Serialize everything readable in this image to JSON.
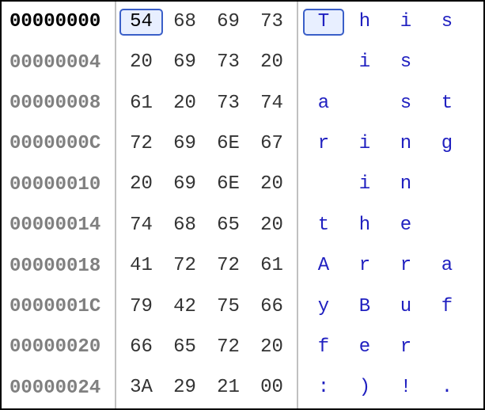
{
  "viewer": {
    "colors": {
      "border": "#000000",
      "divider": "#c0c0c0",
      "offset_first": "#000000",
      "offset_other": "#808080",
      "hex_text": "#333333",
      "ascii_text": "#2020c0",
      "selection_bg": "#e8efff",
      "selection_border": "#3a5fc8",
      "background": "#ffffff"
    },
    "columns_per_row": 4,
    "selected": {
      "row": 0,
      "col": 0
    },
    "rows": [
      {
        "offset": "00000000",
        "hex": [
          "54",
          "68",
          "69",
          "73"
        ],
        "ascii": [
          "T",
          "h",
          "i",
          "s"
        ]
      },
      {
        "offset": "00000004",
        "hex": [
          "20",
          "69",
          "73",
          "20"
        ],
        "ascii": [
          " ",
          "i",
          "s",
          " "
        ]
      },
      {
        "offset": "00000008",
        "hex": [
          "61",
          "20",
          "73",
          "74"
        ],
        "ascii": [
          "a",
          " ",
          "s",
          "t"
        ]
      },
      {
        "offset": "0000000C",
        "hex": [
          "72",
          "69",
          "6E",
          "67"
        ],
        "ascii": [
          "r",
          "i",
          "n",
          "g"
        ]
      },
      {
        "offset": "00000010",
        "hex": [
          "20",
          "69",
          "6E",
          "20"
        ],
        "ascii": [
          " ",
          "i",
          "n",
          " "
        ]
      },
      {
        "offset": "00000014",
        "hex": [
          "74",
          "68",
          "65",
          "20"
        ],
        "ascii": [
          "t",
          "h",
          "e",
          " "
        ]
      },
      {
        "offset": "00000018",
        "hex": [
          "41",
          "72",
          "72",
          "61"
        ],
        "ascii": [
          "A",
          "r",
          "r",
          "a"
        ]
      },
      {
        "offset": "0000001C",
        "hex": [
          "79",
          "42",
          "75",
          "66"
        ],
        "ascii": [
          "y",
          "B",
          "u",
          "f"
        ]
      },
      {
        "offset": "00000020",
        "hex": [
          "66",
          "65",
          "72",
          "20"
        ],
        "ascii": [
          "f",
          "e",
          "r",
          " "
        ]
      },
      {
        "offset": "00000024",
        "hex": [
          "3A",
          "29",
          "21",
          "00"
        ],
        "ascii": [
          ":",
          ")",
          "!",
          "."
        ]
      }
    ]
  }
}
